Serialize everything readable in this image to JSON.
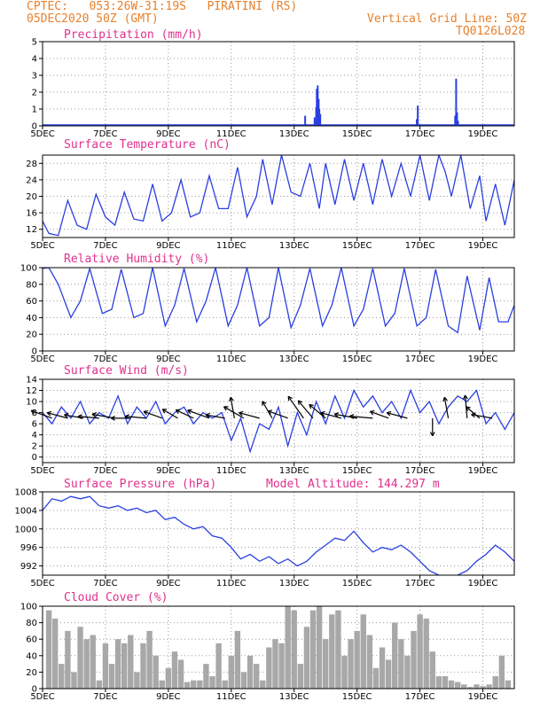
{
  "header": {
    "line1": "CPTEC:   053:26W-31:19S   PIRATINI (RS)",
    "line2": "05DEC2020 50Z (GMT)",
    "grid_note": "Vertical Grid Line: 50Z",
    "code": "TQ0126L028"
  },
  "colors": {
    "header": "#e8802c",
    "title": "#e0308e",
    "line": "#2a3fe0",
    "cloud": "#a8a8a8",
    "grid": "#9a9a9a",
    "arrow": "#000000"
  },
  "x_axis": {
    "range_days": [
      5,
      20
    ],
    "ticks": [
      5,
      7,
      9,
      11,
      13,
      15,
      17,
      19
    ],
    "labels": [
      "5DEC",
      "7DEC",
      "9DEC",
      "11DEC",
      "13DEC",
      "15DEC",
      "17DEC",
      "19DEC"
    ]
  },
  "chart_data": [
    {
      "type": "bar",
      "title": "Precipitation (mm/h)",
      "ylim": [
        0,
        5
      ],
      "yticks": [
        0,
        1,
        2,
        3,
        4,
        5
      ],
      "grid": "dotted",
      "x_days": [
        13.35,
        13.65,
        13.7,
        13.72,
        13.75,
        13.78,
        13.8,
        13.83,
        16.9,
        16.93,
        18.12,
        18.15,
        18.18,
        18.21
      ],
      "values": [
        0.6,
        0.5,
        1.1,
        2.2,
        2.4,
        1.6,
        1.0,
        0.7,
        0.4,
        1.2,
        0.6,
        2.8,
        0.8,
        0.3
      ]
    },
    {
      "type": "line",
      "title": "Surface Temperature (nC)",
      "ylim": [
        10,
        30
      ],
      "yticks": [
        12,
        16,
        20,
        24,
        28
      ],
      "grid": "dotted",
      "series": [
        {
          "x": [
            5.0,
            5.2,
            5.5,
            5.8,
            6.1,
            6.4,
            6.7,
            7.0,
            7.3,
            7.6,
            7.9,
            8.2,
            8.5,
            8.8,
            9.1,
            9.4,
            9.7,
            10.0,
            10.3,
            10.6,
            10.9,
            11.2,
            11.5,
            11.8,
            12.0,
            12.3,
            12.6,
            12.9,
            13.2,
            13.5,
            13.8,
            14.0,
            14.3,
            14.6,
            14.9,
            15.2,
            15.5,
            15.8,
            16.1,
            16.4,
            16.7,
            17.0,
            17.3,
            17.6,
            17.8,
            18.0,
            18.3,
            18.6,
            18.9,
            19.1,
            19.4,
            19.7,
            20.0
          ],
          "y": [
            14,
            11,
            10.5,
            19,
            13,
            12,
            20.5,
            15,
            13,
            21,
            14.5,
            14,
            23,
            14,
            16,
            24,
            15,
            16,
            25,
            17,
            17,
            27,
            15,
            20,
            29,
            18,
            30,
            21,
            20,
            28,
            17,
            28,
            18,
            29,
            19,
            28,
            18,
            29,
            20,
            28,
            20,
            30,
            19,
            30,
            26,
            20,
            30,
            17,
            25,
            14,
            23,
            13,
            24
          ]
        }
      ]
    },
    {
      "type": "line",
      "title": "Relative Humidity (%)",
      "ylim": [
        0,
        100
      ],
      "yticks": [
        0,
        20,
        40,
        60,
        80,
        100
      ],
      "grid": "dotted",
      "series": [
        {
          "x": [
            5.0,
            5.2,
            5.5,
            5.9,
            6.2,
            6.5,
            6.9,
            7.2,
            7.5,
            7.9,
            8.2,
            8.5,
            8.9,
            9.2,
            9.5,
            9.9,
            10.2,
            10.5,
            10.9,
            11.2,
            11.5,
            11.9,
            12.2,
            12.5,
            12.9,
            13.2,
            13.5,
            13.9,
            14.2,
            14.5,
            14.9,
            15.2,
            15.5,
            15.9,
            16.2,
            16.5,
            16.9,
            17.2,
            17.5,
            17.9,
            18.2,
            18.5,
            18.9,
            19.2,
            19.5,
            19.8,
            20.0
          ],
          "y": [
            99,
            100,
            80,
            40,
            60,
            99,
            45,
            50,
            98,
            40,
            45,
            100,
            30,
            55,
            99,
            35,
            60,
            100,
            30,
            55,
            100,
            30,
            40,
            100,
            28,
            55,
            99,
            30,
            55,
            100,
            30,
            50,
            99,
            30,
            45,
            99,
            30,
            40,
            98,
            30,
            22,
            90,
            25,
            88,
            35,
            35,
            55
          ]
        }
      ]
    },
    {
      "type": "line",
      "title": "Surface Wind (m/s)",
      "ylim": [
        -1,
        14
      ],
      "yticks": [
        0,
        2,
        4,
        6,
        8,
        10,
        12,
        14
      ],
      "grid": "dotted",
      "series": [
        {
          "x": [
            5.0,
            5.3,
            5.6,
            5.9,
            6.2,
            6.5,
            6.8,
            7.1,
            7.4,
            7.7,
            8.0,
            8.3,
            8.6,
            8.9,
            9.2,
            9.5,
            9.8,
            10.1,
            10.4,
            10.7,
            11.0,
            11.3,
            11.6,
            11.9,
            12.2,
            12.5,
            12.8,
            13.1,
            13.4,
            13.7,
            14.0,
            14.3,
            14.6,
            14.9,
            15.2,
            15.5,
            15.8,
            16.1,
            16.4,
            16.7,
            17.0,
            17.3,
            17.6,
            17.9,
            18.2,
            18.5,
            18.8,
            19.1,
            19.4,
            19.7,
            20.0
          ],
          "y": [
            8,
            6,
            9,
            7,
            10,
            6,
            8,
            7,
            11,
            6,
            9,
            7,
            10,
            6,
            8,
            9,
            6,
            8,
            7,
            8,
            3,
            7,
            1,
            6,
            5,
            9,
            2,
            8,
            4,
            10,
            6,
            11,
            7,
            12,
            9,
            11,
            8,
            10,
            7,
            12,
            8,
            10,
            6,
            9,
            11,
            10,
            12,
            6,
            8,
            5,
            8
          ]
        }
      ],
      "arrows": [
        {
          "x": 5.3,
          "angle_deg": 160,
          "len": 25
        },
        {
          "x": 5.8,
          "angle_deg": 165,
          "len": 24
        },
        {
          "x": 6.3,
          "angle_deg": 170,
          "len": 22
        },
        {
          "x": 6.8,
          "angle_deg": 175,
          "len": 24
        },
        {
          "x": 7.3,
          "angle_deg": 170,
          "len": 26
        },
        {
          "x": 7.8,
          "angle_deg": 180,
          "len": 22
        },
        {
          "x": 8.3,
          "angle_deg": 175,
          "len": 24
        },
        {
          "x": 8.8,
          "angle_deg": 160,
          "len": 22
        },
        {
          "x": 9.3,
          "angle_deg": 150,
          "len": 20
        },
        {
          "x": 9.8,
          "angle_deg": 155,
          "len": 22
        },
        {
          "x": 10.3,
          "angle_deg": 160,
          "len": 26
        },
        {
          "x": 10.8,
          "angle_deg": 170,
          "len": 22
        },
        {
          "x": 11.1,
          "angle_deg": 100,
          "len": 24
        },
        {
          "x": 11.4,
          "angle_deg": 150,
          "len": 26
        },
        {
          "x": 11.9,
          "angle_deg": 165,
          "len": 24
        },
        {
          "x": 12.3,
          "angle_deg": 120,
          "len": 22
        },
        {
          "x": 12.8,
          "angle_deg": 160,
          "len": 24
        },
        {
          "x": 13.3,
          "angle_deg": 125,
          "len": 30
        },
        {
          "x": 13.6,
          "angle_deg": 130,
          "len": 26
        },
        {
          "x": 14.0,
          "angle_deg": 140,
          "len": 24
        },
        {
          "x": 14.5,
          "angle_deg": 165,
          "len": 24
        },
        {
          "x": 15.0,
          "angle_deg": 170,
          "len": 26
        },
        {
          "x": 15.5,
          "angle_deg": 175,
          "len": 26
        },
        {
          "x": 16.0,
          "angle_deg": 160,
          "len": 22
        },
        {
          "x": 16.6,
          "angle_deg": 165,
          "len": 24
        },
        {
          "x": 17.4,
          "angle_deg": 270,
          "len": 20
        },
        {
          "x": 17.9,
          "angle_deg": 100,
          "len": 24
        },
        {
          "x": 18.5,
          "angle_deg": 95,
          "len": 26
        },
        {
          "x": 18.9,
          "angle_deg": 140,
          "len": 20
        },
        {
          "x": 19.3,
          "angle_deg": 170,
          "len": 24
        }
      ]
    },
    {
      "type": "line",
      "title": "Surface Pressure (hPa)",
      "subtitle": "Model Altitude: 144.297 m",
      "ylim": [
        990,
        1008
      ],
      "yticks": [
        992,
        996,
        1000,
        1004,
        1008
      ],
      "grid": "dotted",
      "series": [
        {
          "x": [
            5.0,
            5.3,
            5.6,
            5.9,
            6.2,
            6.5,
            6.8,
            7.1,
            7.4,
            7.7,
            8.0,
            8.3,
            8.6,
            8.9,
            9.2,
            9.5,
            9.8,
            10.1,
            10.4,
            10.7,
            11.0,
            11.3,
            11.6,
            11.9,
            12.2,
            12.5,
            12.8,
            13.1,
            13.4,
            13.7,
            14.0,
            14.3,
            14.6,
            14.9,
            15.2,
            15.5,
            15.8,
            16.1,
            16.4,
            16.7,
            17.0,
            17.3,
            17.6,
            17.9,
            18.2,
            18.5,
            18.8,
            19.1,
            19.4,
            19.7,
            20.0
          ],
          "y": [
            1004,
            1006.5,
            1006,
            1007,
            1006.5,
            1007,
            1005,
            1004.5,
            1005,
            1004,
            1004.5,
            1003.5,
            1004,
            1002,
            1002.5,
            1001,
            1000,
            1000.5,
            998.5,
            998,
            996,
            993.5,
            994.5,
            993,
            994,
            992.5,
            993.5,
            992,
            993,
            995,
            996.5,
            998,
            997.5,
            999.5,
            997,
            995,
            996,
            995.5,
            996.5,
            995,
            993,
            991,
            990,
            989.5,
            990,
            991,
            993,
            994.5,
            996.5,
            995,
            993
          ]
        }
      ]
    },
    {
      "type": "bar",
      "title": "Cloud Cover (%)",
      "ylim": [
        0,
        100
      ],
      "yticks": [
        0,
        20,
        40,
        60,
        80,
        100
      ],
      "grid": "dotted",
      "x_days": [
        5.2,
        5.4,
        5.6,
        5.8,
        6.0,
        6.2,
        6.4,
        6.6,
        6.8,
        7.0,
        7.2,
        7.4,
        7.6,
        7.8,
        8.0,
        8.2,
        8.4,
        8.6,
        8.8,
        9.0,
        9.2,
        9.4,
        9.6,
        9.8,
        10.0,
        10.2,
        10.4,
        10.6,
        10.8,
        11.0,
        11.2,
        11.4,
        11.6,
        11.8,
        12.0,
        12.2,
        12.4,
        12.6,
        12.8,
        13.0,
        13.2,
        13.4,
        13.6,
        13.8,
        14.0,
        14.2,
        14.4,
        14.6,
        14.8,
        15.0,
        15.2,
        15.4,
        15.6,
        15.8,
        16.0,
        16.2,
        16.4,
        16.6,
        16.8,
        17.0,
        17.2,
        17.4,
        17.6,
        17.8,
        18.0,
        18.2,
        18.4,
        18.6,
        18.8,
        19.0,
        19.2,
        19.4,
        19.6,
        19.8
      ],
      "values": [
        95,
        85,
        30,
        70,
        20,
        75,
        60,
        65,
        10,
        55,
        30,
        60,
        55,
        65,
        20,
        55,
        70,
        40,
        10,
        25,
        45,
        35,
        8,
        10,
        10,
        30,
        15,
        55,
        10,
        40,
        70,
        20,
        40,
        30,
        10,
        50,
        60,
        55,
        100,
        95,
        30,
        75,
        95,
        100,
        60,
        90,
        95,
        40,
        60,
        70,
        90,
        65,
        25,
        50,
        35,
        80,
        60,
        40,
        70,
        90,
        85,
        45,
        15,
        15,
        10,
        8,
        5,
        2,
        5,
        3,
        5,
        15,
        40,
        10
      ]
    }
  ]
}
